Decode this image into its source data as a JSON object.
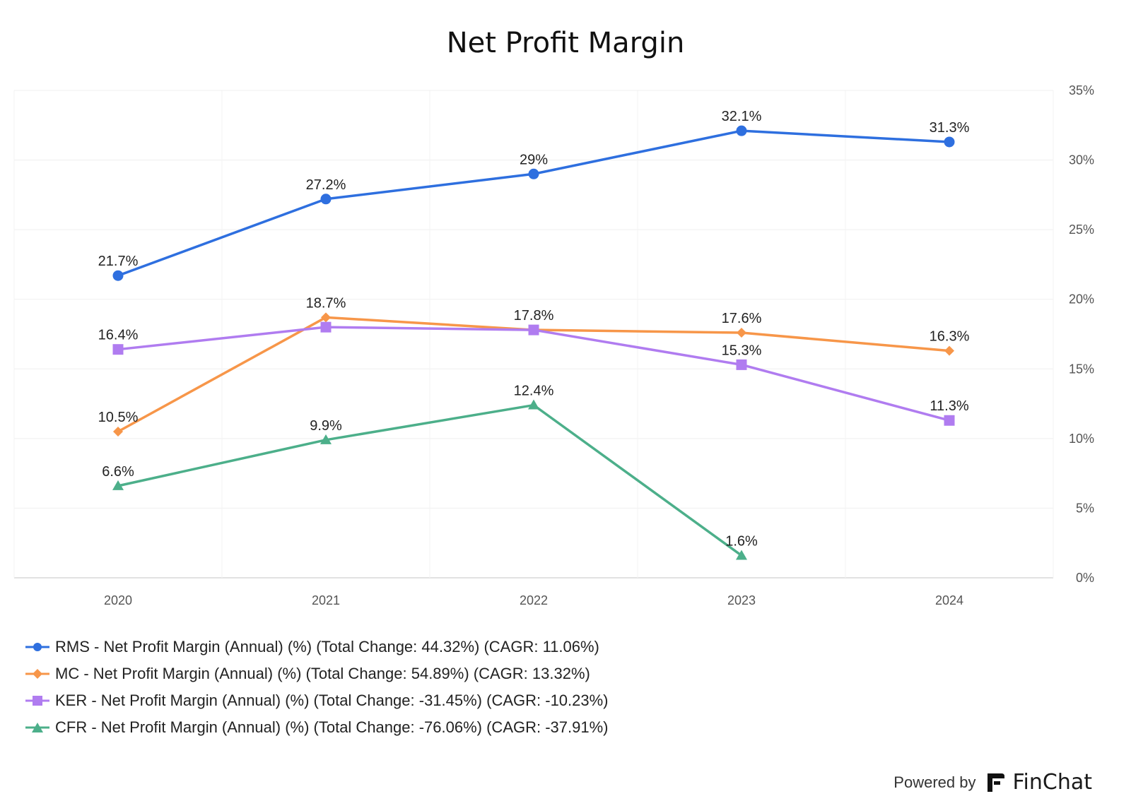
{
  "chart_data": {
    "type": "line",
    "title": "Net Profit Margin",
    "categories": [
      "2020",
      "2021",
      "2022",
      "2023",
      "2024"
    ],
    "ylim": [
      0,
      35
    ],
    "y_ticks": [
      "0%",
      "5%",
      "10%",
      "15%",
      "20%",
      "25%",
      "30%",
      "35%"
    ],
    "y_axis_side": "right",
    "grid": true,
    "legend_position": "bottom-left",
    "series": [
      {
        "name": "RMS - Net Profit Margin (Annual) (%) (Total Change: 44.32%) (CAGR: 11.06%)",
        "color": "#2e6fdf",
        "marker": "circle",
        "values": [
          21.7,
          27.2,
          29.0,
          32.1,
          31.3
        ],
        "labels": [
          "21.7%",
          "27.2%",
          "29%",
          "32.1%",
          "31.3%"
        ]
      },
      {
        "name": "MC - Net Profit Margin (Annual) (%) (Total Change: 54.89%) (CAGR: 13.32%)",
        "color": "#f79649",
        "marker": "diamond",
        "values": [
          10.5,
          18.7,
          17.8,
          17.6,
          16.3
        ],
        "labels": [
          "10.5%",
          "18.7%",
          "17.8%",
          "17.6%",
          "16.3%"
        ]
      },
      {
        "name": "KER - Net Profit Margin (Annual) (%) (Total Change: -31.45%) (CAGR: -10.23%)",
        "color": "#b07cf0",
        "marker": "square",
        "values": [
          16.4,
          18.0,
          17.8,
          15.3,
          11.3
        ],
        "labels": [
          "16.4%",
          "",
          "",
          "15.3%",
          "11.3%"
        ]
      },
      {
        "name": "CFR - Net Profit Margin (Annual) (%) (Total Change: -76.06%) (CAGR: -37.91%)",
        "color": "#4caf8a",
        "marker": "triangle",
        "values": [
          6.6,
          9.9,
          12.4,
          1.6,
          null
        ],
        "labels": [
          "6.6%",
          "9.9%",
          "12.4%",
          "1.6%",
          ""
        ]
      }
    ]
  },
  "footer": {
    "powered_by": "Powered by",
    "brand": "FinChat",
    "logo_icon": "finchat-logo-icon"
  }
}
